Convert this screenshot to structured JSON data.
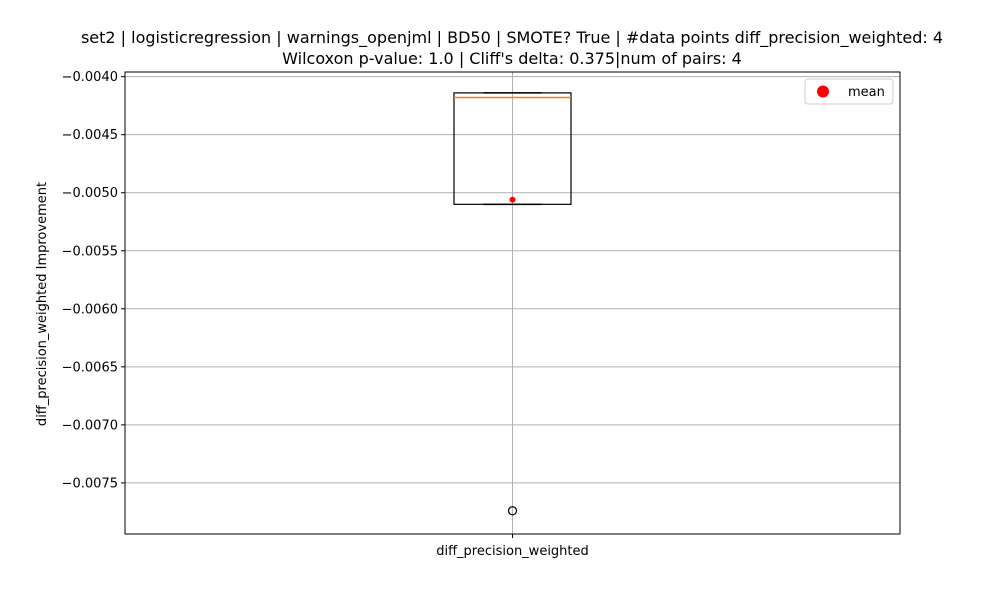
{
  "chart_data": {
    "type": "box",
    "title_line1": "set2 | logisticregression | warnings_openjml | BD50 | SMOTE? True | #data points diff_precision_weighted: 4",
    "title_line2": "Wilcoxon p-value: 1.0 | Cliff's delta: 0.375|num of pairs: 4",
    "xlabel": "",
    "ylabel": "diff_precision_weighted Improvement",
    "categories": [
      "diff_precision_weighted"
    ],
    "ylim": [
      -0.00794,
      -0.00396
    ],
    "yticks": [
      -0.004,
      -0.0045,
      -0.005,
      -0.0055,
      -0.006,
      -0.0065,
      -0.007,
      -0.0075
    ],
    "ytick_labels": [
      "−0.0040",
      "−0.0045",
      "−0.0050",
      "−0.0055",
      "−0.0060",
      "−0.0065",
      "−0.0070",
      "−0.0075"
    ],
    "box": {
      "whisker_low": -0.0051,
      "q1": -0.0051,
      "median": -0.00418,
      "q3": -0.00414,
      "whisker_high": -0.00414,
      "mean": -0.00506,
      "outliers": [
        -0.00774
      ]
    },
    "grid": true,
    "legend": {
      "position": "top-right",
      "entries": [
        {
          "label": "mean",
          "color": "#ff0000",
          "marker": "circle"
        }
      ]
    },
    "colors": {
      "box": "#000000",
      "median": "#ff7f0e",
      "mean": "#ff0000",
      "grid": "#b0b0b0"
    }
  }
}
